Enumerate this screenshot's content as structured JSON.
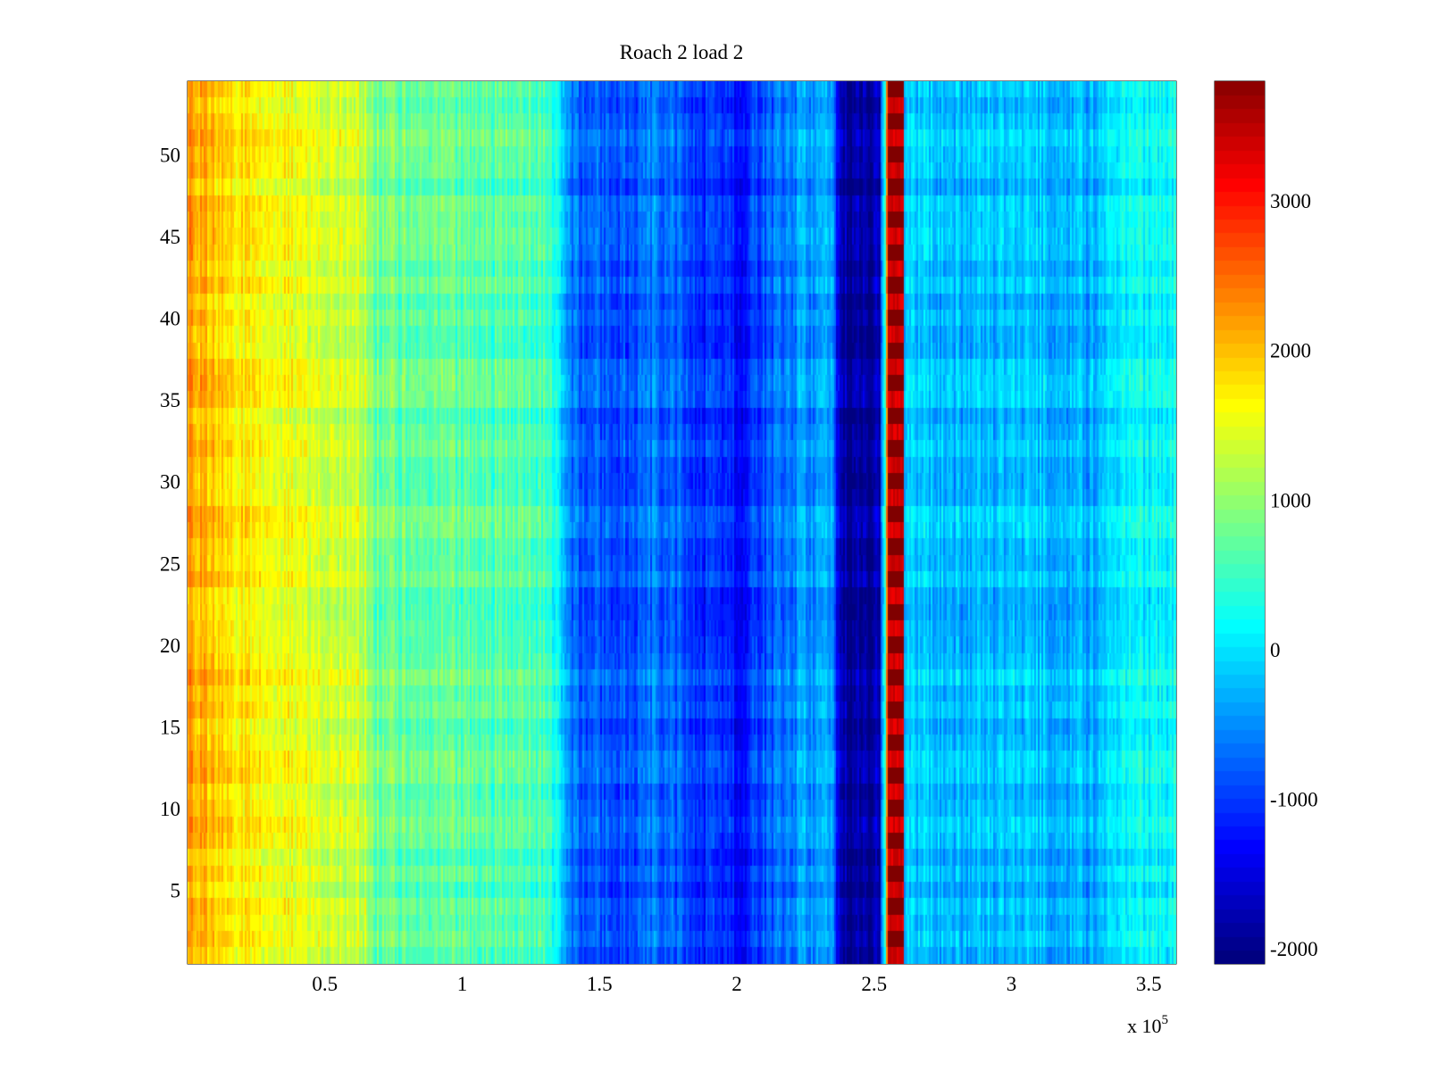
{
  "chart_data": {
    "type": "heatmap",
    "title": "Roach 2 load 2",
    "xlabel": "",
    "ylabel": "",
    "x_exponent_label": {
      "prefix": "x 10",
      "exponent": "5"
    },
    "xlim": [
      0,
      360000
    ],
    "ylim": [
      0.5,
      54.5
    ],
    "x_ticks": [
      {
        "value": 50000,
        "label": "0.5"
      },
      {
        "value": 100000,
        "label": "1"
      },
      {
        "value": 150000,
        "label": "1.5"
      },
      {
        "value": 200000,
        "label": "2"
      },
      {
        "value": 250000,
        "label": "2.5"
      },
      {
        "value": 300000,
        "label": "3"
      },
      {
        "value": 350000,
        "label": "3.5"
      }
    ],
    "y_ticks": [
      {
        "value": 5,
        "label": "5"
      },
      {
        "value": 10,
        "label": "10"
      },
      {
        "value": 15,
        "label": "15"
      },
      {
        "value": 20,
        "label": "20"
      },
      {
        "value": 25,
        "label": "25"
      },
      {
        "value": 30,
        "label": "30"
      },
      {
        "value": 35,
        "label": "35"
      },
      {
        "value": 40,
        "label": "40"
      },
      {
        "value": 45,
        "label": "45"
      },
      {
        "value": 50,
        "label": "50"
      }
    ],
    "rows": 54,
    "colormap": "jet",
    "colorbar": {
      "range": [
        -2100,
        3800
      ],
      "ticks": [
        {
          "value": -2000,
          "label": "-2000"
        },
        {
          "value": -1000,
          "label": "-1000"
        },
        {
          "value": 0,
          "label": "0"
        },
        {
          "value": 1000,
          "label": "1000"
        },
        {
          "value": 2000,
          "label": "2000"
        },
        {
          "value": 3000,
          "label": "3000"
        }
      ]
    },
    "column_profile": {
      "x": [
        0,
        5000,
        20000,
        40000,
        65000,
        67000,
        100000,
        130000,
        136000,
        140000,
        160000,
        170000,
        190000,
        200000,
        215000,
        225000,
        235000,
        238000,
        250000,
        252000,
        253000,
        254000,
        255000,
        256000,
        260000,
        261000,
        262000,
        270000,
        285000,
        300000,
        330000,
        335000,
        340000,
        360000
      ],
      "values": [
        2200,
        2000,
        1700,
        1500,
        1300,
        800,
        700,
        600,
        0,
        -700,
        -900,
        -600,
        -1100,
        -1200,
        -700,
        -400,
        -500,
        -1900,
        -1900,
        -1700,
        -500,
        200,
        3800,
        3800,
        3800,
        -300,
        -100,
        -200,
        -300,
        -200,
        -300,
        0,
        100,
        200
      ]
    },
    "grid": false,
    "legend": "none"
  }
}
